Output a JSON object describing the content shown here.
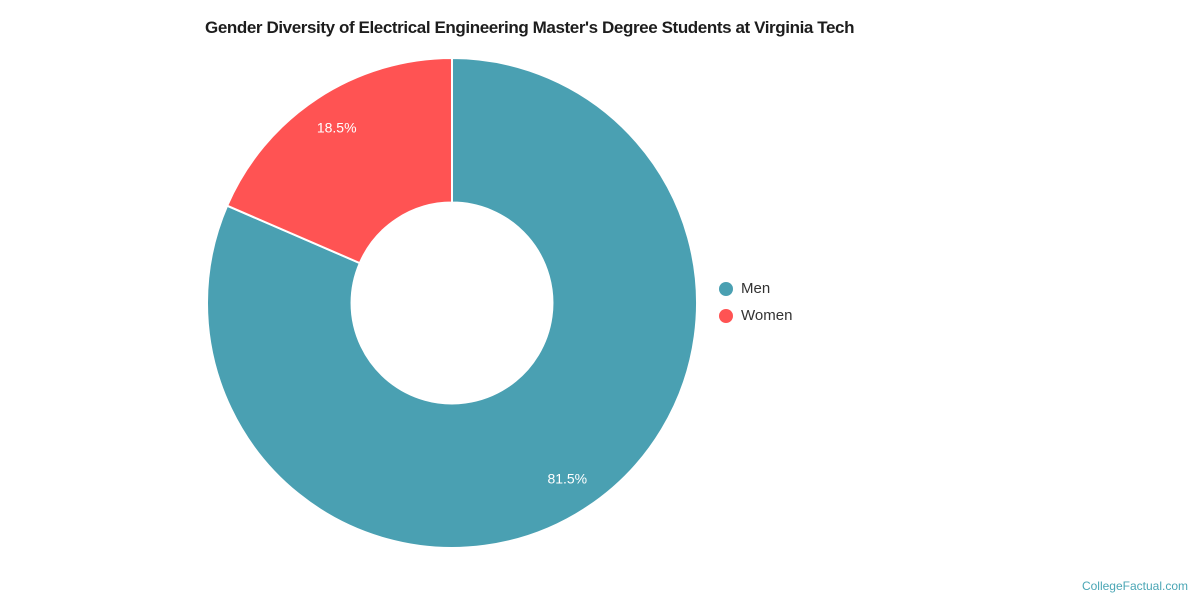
{
  "title": "Gender Diversity of Electrical Engineering Master's Degree Students at Virginia Tech",
  "watermark": "CollegeFactual.com",
  "colors": {
    "men": "#4AA0B2",
    "women": "#FF5353",
    "label_text": "#FFFFFF",
    "title_text": "#1D1D1D",
    "legend_text": "#333333",
    "watermark_text": "#4AA6B5",
    "background": "#FFFFFF"
  },
  "chart_data": {
    "type": "pie",
    "donut": true,
    "title": "Gender Diversity of Electrical Engineering Master's Degree Students at Virginia Tech",
    "categories": [
      "Men",
      "Women"
    ],
    "values": [
      81.5,
      18.5
    ],
    "labels": [
      "81.5%",
      "18.5%"
    ],
    "colors": [
      "#4AA0B2",
      "#FF5353"
    ],
    "start_angle": 0,
    "direction": "clockwise",
    "inner_radius_ratio": 0.41,
    "legend_position": "right"
  },
  "legend": {
    "items": [
      {
        "label": "Men",
        "color": "#4AA0B2"
      },
      {
        "label": "Women",
        "color": "#FF5353"
      }
    ]
  }
}
